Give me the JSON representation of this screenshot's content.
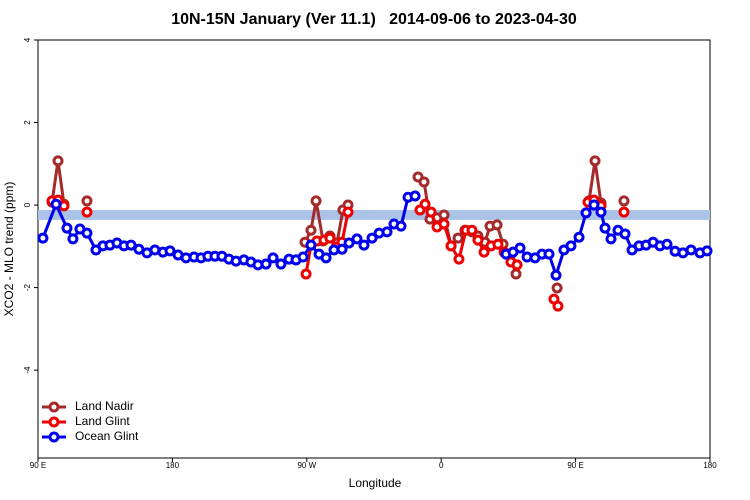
{
  "chart_data": {
    "type": "line",
    "title": "10N-15N January (Ver 11.1)   2014-09-06 to 2023-04-30",
    "x_label": "Longitude",
    "y_label": "XCO2 - MLO trend (ppm)",
    "xlim": [
      90,
      540
    ],
    "xticks": [
      {
        "value": 90,
        "label": "90 E"
      },
      180,
      {
        "value": 270,
        "label": "90 W"
      },
      {
        "value": 360,
        "label": "0"
      },
      {
        "value": 450,
        "label": "90 E"
      },
      {
        "value": 540,
        "label": "180"
      }
    ],
    "ylim": [
      -6.13,
      4
    ],
    "yticks": [
      4,
      2,
      0,
      -2,
      -4
    ],
    "band": {
      "ylim": [
        -0.36,
        -0.12
      ],
      "color": "#aac3e6"
    },
    "legend": "bottom-left",
    "series": [
      {
        "name": "Land Nadir",
        "color": "#a52a2a",
        "x": [
          99.4,
          103.4,
          107.4,
          null,
          122.8,
          null,
          268.8,
          272.8,
          276.2,
          280.9,
          285.5,
          290.2,
          294.2,
          297.6,
          null,
          344.5,
          348.5,
          352.5,
          357.2,
          361.9,
          366.6,
          371.3,
          375.9,
          380.6,
          384.6,
          389.3,
          392.7,
          397.4,
          401.4,
          406.1,
          410.1,
          null,
          437.6,
          null,
          459.0,
          463.0,
          467.0,
          null,
          482.4
        ],
        "values": [
          0.07,
          1.07,
          0.02,
          null,
          0.1,
          null,
          -0.9,
          -0.61,
          0.1,
          -0.87,
          -0.75,
          -0.92,
          -0.12,
          0.0,
          null,
          0.68,
          0.56,
          -0.34,
          -0.31,
          -0.24,
          -0.99,
          -0.8,
          -0.61,
          -0.65,
          -0.75,
          -0.9,
          -0.51,
          -0.48,
          -0.95,
          -1.24,
          -1.67,
          null,
          -2.01,
          null,
          0.1,
          1.07,
          0.05,
          null,
          0.1
        ]
      },
      {
        "name": "Land Glint",
        "color": "#ee0000",
        "x": [
          99.4,
          103.4,
          107.4,
          null,
          122.8,
          null,
          269.5,
          272.8,
          276.8,
          281.5,
          285.5,
          289.6,
          293.6,
          297.6,
          null,
          345.8,
          349.2,
          353.2,
          357.2,
          361.9,
          366.6,
          371.9,
          376.6,
          380.6,
          384.6,
          388.7,
          393.4,
          398.0,
          402.1,
          406.7,
          410.8,
          null,
          435.5,
          438.2,
          null,
          458.3,
          462.3,
          467.0,
          null,
          482.4
        ],
        "values": [
          0.1,
          0.12,
          -0.02,
          null,
          -0.17,
          null,
          -1.67,
          -0.97,
          -0.87,
          -0.85,
          -0.8,
          -1.02,
          -0.9,
          -0.17,
          null,
          -0.12,
          0.02,
          -0.17,
          -0.53,
          -0.46,
          -0.99,
          -1.31,
          -0.61,
          -0.61,
          -0.85,
          -1.14,
          -0.99,
          -0.95,
          -1.14,
          -1.38,
          -1.45,
          null,
          -2.28,
          -2.45,
          null,
          0.07,
          0.12,
          -0.02,
          null,
          -0.17
        ]
      },
      {
        "name": "Ocean Glint",
        "color": "#0000ee",
        "x": [
          93.3,
          102.1,
          109.4,
          113.4,
          118.1,
          122.8,
          128.8,
          133.5,
          138.2,
          142.9,
          147.6,
          152.3,
          157.6,
          163.0,
          168.3,
          173.7,
          178.4,
          183.8,
          189.1,
          194.5,
          199.2,
          203.8,
          208.5,
          213.2,
          217.9,
          222.6,
          227.9,
          232.6,
          237.3,
          242.7,
          247.4,
          252.7,
          258.1,
          262.8,
          267.5,
          272.8,
          278.2,
          282.9,
          288.2,
          293.6,
          298.3,
          303.6,
          308.3,
          313.7,
          318.4,
          323.7,
          328.4,
          333.1,
          337.8,
          342.5,
          null,
          403.4,
          408.1,
          412.8,
          417.5,
          422.8,
          427.5,
          432.2,
          436.9,
          442.2,
          446.9,
          452.3,
          457.0,
          462.3,
          467.0,
          469.7,
          473.7,
          478.4,
          483.1,
          487.8,
          492.5,
          497.2,
          501.9,
          506.5,
          511.2,
          516.6,
          521.9,
          527.3,
          533.3,
          538.0
        ],
        "values": [
          -0.8,
          0.02,
          -0.56,
          -0.82,
          -0.58,
          -0.68,
          -1.09,
          -0.99,
          -0.97,
          -0.92,
          -0.99,
          -0.97,
          -1.07,
          -1.16,
          -1.09,
          -1.14,
          -1.11,
          -1.21,
          -1.28,
          -1.26,
          -1.28,
          -1.24,
          -1.24,
          -1.24,
          -1.31,
          -1.36,
          -1.33,
          -1.38,
          -1.45,
          -1.43,
          -1.28,
          -1.43,
          -1.31,
          -1.33,
          -1.26,
          -0.97,
          -1.19,
          -1.28,
          -1.09,
          -1.07,
          -0.92,
          -0.82,
          -0.97,
          -0.8,
          -0.68,
          -0.65,
          -0.46,
          -0.51,
          0.19,
          0.22,
          null,
          -1.19,
          -1.14,
          -1.04,
          -1.26,
          -1.28,
          -1.19,
          -1.19,
          -1.7,
          -1.09,
          -0.99,
          -0.78,
          -0.19,
          0.0,
          -0.17,
          -0.56,
          -0.82,
          -0.61,
          -0.7,
          -1.09,
          -0.99,
          -0.97,
          -0.9,
          -0.99,
          -0.95,
          -1.12,
          -1.16,
          -1.09,
          -1.16,
          -1.11
        ]
      }
    ]
  }
}
